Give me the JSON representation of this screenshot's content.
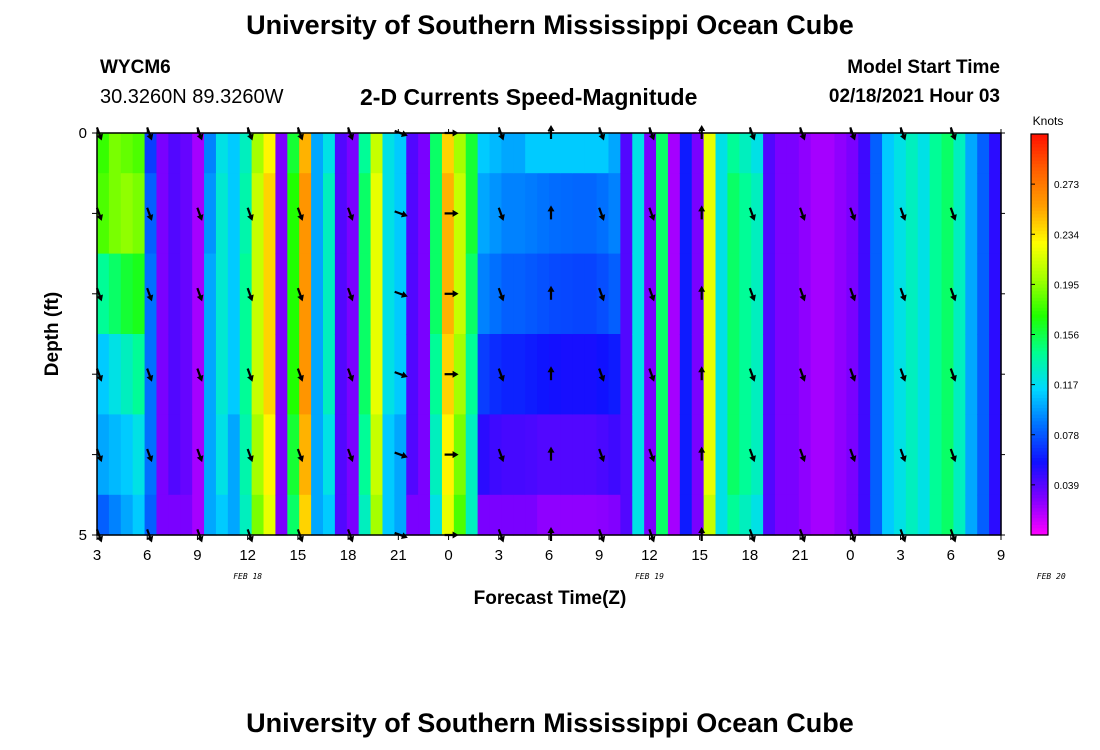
{
  "header": {
    "title": "University of Southern Mississippi Ocean Cube",
    "station": "WYCM6",
    "coords": "30.3260N 89.3260W",
    "plot_title": "2-D Currents Speed-Magnitude",
    "model_start_label": "Model Start Time",
    "model_start_value": "02/18/2021 Hour 03"
  },
  "footer": {
    "title": "University of Southern Mississippi Ocean Cube"
  },
  "colors": {
    "palette": [
      "#ff00ff",
      "#8000ff",
      "#1010ff",
      "#0070ff",
      "#00d8ff",
      "#00ff90",
      "#20ff00",
      "#a0ff00",
      "#ffff00",
      "#ffa000",
      "#ff6000",
      "#ff1000"
    ]
  },
  "chart_data": {
    "type": "heatmap",
    "title": "2-D Currents Speed-Magnitude",
    "xlabel": "Forecast Time(Z)",
    "ylabel": "Depth (ft)",
    "colorbar_label": "Knots",
    "colorbar_ticks": [
      "0.273",
      "0.234",
      "0.195",
      "0.156",
      "0.117",
      "0.078",
      "0.039"
    ],
    "colorbar_range": [
      0,
      0.312
    ],
    "y_ticks": [
      "0",
      "5"
    ],
    "ylim": [
      0,
      5
    ],
    "x_ticks": [
      "3",
      "6",
      "9",
      "12",
      "15",
      "18",
      "21",
      "0",
      "3",
      "6",
      "9",
      "12",
      "15",
      "18",
      "21",
      "0",
      "3",
      "6",
      "9"
    ],
    "date_labels": [
      {
        "label": "FEB 18",
        "at_hour": 12
      },
      {
        "label": "FEB 19",
        "at_hour": 36
      },
      {
        "label": "FEB 20",
        "at_hour": 60
      }
    ],
    "x_range_hours": [
      0,
      54
    ],
    "columns": [
      [
        0.175,
        0.18,
        0.14,
        0.11,
        0.1,
        0.08
      ],
      [
        0.19,
        0.19,
        0.15,
        0.12,
        0.105,
        0.09
      ],
      [
        0.185,
        0.195,
        0.16,
        0.13,
        0.11,
        0.1
      ],
      [
        0.18,
        0.19,
        0.165,
        0.14,
        0.12,
        0.11
      ],
      [
        0.07,
        0.08,
        0.085,
        0.085,
        0.085,
        0.08
      ],
      [
        0.03,
        0.03,
        0.03,
        0.03,
        0.03,
        0.03
      ],
      [
        0.04,
        0.04,
        0.04,
        0.04,
        0.04,
        0.03
      ],
      [
        0.035,
        0.035,
        0.035,
        0.035,
        0.035,
        0.03
      ],
      [
        0.02,
        0.02,
        0.02,
        0.02,
        0.02,
        0.02
      ],
      [
        0.09,
        0.095,
        0.1,
        0.1,
        0.1,
        0.1
      ],
      [
        0.12,
        0.125,
        0.125,
        0.125,
        0.12,
        0.11
      ],
      [
        0.11,
        0.11,
        0.11,
        0.11,
        0.1,
        0.1
      ],
      [
        0.13,
        0.135,
        0.14,
        0.14,
        0.135,
        0.13
      ],
      [
        0.2,
        0.21,
        0.21,
        0.21,
        0.2,
        0.19
      ],
      [
        0.23,
        0.24,
        0.24,
        0.24,
        0.23,
        0.22
      ],
      [
        0.03,
        0.03,
        0.03,
        0.03,
        0.03,
        0.03
      ],
      [
        0.16,
        0.17,
        0.17,
        0.17,
        0.16,
        0.15
      ],
      [
        0.25,
        0.26,
        0.26,
        0.26,
        0.25,
        0.24
      ],
      [
        0.1,
        0.1,
        0.1,
        0.1,
        0.1,
        0.1
      ],
      [
        0.12,
        0.13,
        0.13,
        0.13,
        0.12,
        0.11
      ],
      [
        0.04,
        0.04,
        0.04,
        0.04,
        0.04,
        0.04
      ],
      [
        0.03,
        0.03,
        0.03,
        0.03,
        0.03,
        0.03
      ],
      [
        0.14,
        0.15,
        0.15,
        0.15,
        0.14,
        0.13
      ],
      [
        0.21,
        0.22,
        0.22,
        0.22,
        0.21,
        0.2
      ],
      [
        0.12,
        0.12,
        0.12,
        0.12,
        0.11,
        0.11
      ],
      [
        0.11,
        0.11,
        0.11,
        0.11,
        0.1,
        0.1
      ],
      [
        0.04,
        0.04,
        0.04,
        0.04,
        0.04,
        0.03
      ],
      [
        0.03,
        0.03,
        0.03,
        0.03,
        0.03,
        0.03
      ],
      [
        0.15,
        0.15,
        0.15,
        0.14,
        0.13,
        0.12
      ],
      [
        0.24,
        0.25,
        0.25,
        0.24,
        0.23,
        0.22
      ],
      [
        0.2,
        0.21,
        0.21,
        0.2,
        0.19,
        0.18
      ],
      [
        0.16,
        0.16,
        0.15,
        0.14,
        0.13,
        0.13
      ],
      [
        0.11,
        0.1,
        0.09,
        0.07,
        0.05,
        0.03
      ],
      [
        0.105,
        0.095,
        0.085,
        0.065,
        0.045,
        0.03
      ],
      [
        0.1,
        0.09,
        0.08,
        0.062,
        0.043,
        0.03
      ],
      [
        0.1,
        0.09,
        0.08,
        0.062,
        0.043,
        0.03
      ],
      [
        0.11,
        0.088,
        0.078,
        0.06,
        0.042,
        0.03
      ],
      [
        0.11,
        0.086,
        0.076,
        0.058,
        0.04,
        0.025
      ],
      [
        0.11,
        0.084,
        0.074,
        0.056,
        0.04,
        0.025
      ],
      [
        0.11,
        0.083,
        0.073,
        0.055,
        0.04,
        0.025
      ],
      [
        0.11,
        0.082,
        0.072,
        0.055,
        0.04,
        0.025
      ],
      [
        0.11,
        0.082,
        0.072,
        0.055,
        0.04,
        0.025
      ],
      [
        0.11,
        0.085,
        0.075,
        0.057,
        0.042,
        0.026
      ],
      [
        0.1,
        0.09,
        0.08,
        0.06,
        0.045,
        0.028
      ],
      [
        0.04,
        0.04,
        0.04,
        0.04,
        0.04,
        0.04
      ],
      [
        0.12,
        0.12,
        0.12,
        0.12,
        0.12,
        0.12
      ],
      [
        0.03,
        0.03,
        0.03,
        0.03,
        0.03,
        0.03
      ],
      [
        0.15,
        0.15,
        0.15,
        0.15,
        0.15,
        0.15
      ],
      [
        0.02,
        0.02,
        0.02,
        0.02,
        0.02,
        0.02
      ],
      [
        0.06,
        0.06,
        0.06,
        0.06,
        0.06,
        0.06
      ],
      [
        0.03,
        0.03,
        0.03,
        0.03,
        0.03,
        0.03
      ],
      [
        0.22,
        0.22,
        0.22,
        0.22,
        0.22,
        0.21
      ],
      [
        0.12,
        0.12,
        0.12,
        0.12,
        0.12,
        0.12
      ],
      [
        0.14,
        0.15,
        0.15,
        0.15,
        0.15,
        0.14
      ],
      [
        0.13,
        0.14,
        0.14,
        0.14,
        0.14,
        0.13
      ],
      [
        0.12,
        0.13,
        0.13,
        0.13,
        0.13,
        0.12
      ],
      [
        0.04,
        0.04,
        0.04,
        0.04,
        0.04,
        0.04
      ],
      [
        0.03,
        0.03,
        0.03,
        0.03,
        0.03,
        0.03
      ],
      [
        0.03,
        0.03,
        0.03,
        0.03,
        0.03,
        0.03
      ],
      [
        0.025,
        0.025,
        0.025,
        0.025,
        0.025,
        0.025
      ],
      [
        0.02,
        0.02,
        0.02,
        0.02,
        0.02,
        0.02
      ],
      [
        0.02,
        0.02,
        0.02,
        0.02,
        0.02,
        0.02
      ],
      [
        0.025,
        0.025,
        0.025,
        0.025,
        0.025,
        0.025
      ],
      [
        0.03,
        0.03,
        0.03,
        0.03,
        0.03,
        0.03
      ],
      [
        0.045,
        0.045,
        0.045,
        0.045,
        0.045,
        0.045
      ],
      [
        0.08,
        0.08,
        0.08,
        0.08,
        0.08,
        0.08
      ],
      [
        0.11,
        0.11,
        0.11,
        0.11,
        0.11,
        0.11
      ],
      [
        0.12,
        0.12,
        0.12,
        0.12,
        0.12,
        0.12
      ],
      [
        0.13,
        0.13,
        0.13,
        0.13,
        0.13,
        0.13
      ],
      [
        0.12,
        0.12,
        0.12,
        0.12,
        0.12,
        0.12
      ],
      [
        0.14,
        0.14,
        0.14,
        0.14,
        0.14,
        0.14
      ],
      [
        0.15,
        0.15,
        0.15,
        0.15,
        0.15,
        0.15
      ],
      [
        0.13,
        0.13,
        0.13,
        0.13,
        0.13,
        0.13
      ],
      [
        0.1,
        0.1,
        0.1,
        0.1,
        0.1,
        0.1
      ],
      [
        0.08,
        0.08,
        0.08,
        0.08,
        0.08,
        0.08
      ],
      [
        0.05,
        0.05,
        0.05,
        0.05,
        0.05,
        0.05
      ]
    ],
    "vectors_hours": [
      0,
      3,
      6,
      9,
      12,
      15,
      18,
      21,
      24,
      27,
      30,
      33,
      36,
      39,
      42,
      45,
      48,
      51
    ],
    "vector_depths": [
      0,
      1,
      2,
      3,
      4,
      5
    ],
    "vector_directions_deg": [
      160,
      160,
      160,
      160,
      160,
      160,
      110,
      90,
      160,
      0,
      160,
      160,
      0,
      160,
      160,
      160,
      160,
      160
    ]
  }
}
